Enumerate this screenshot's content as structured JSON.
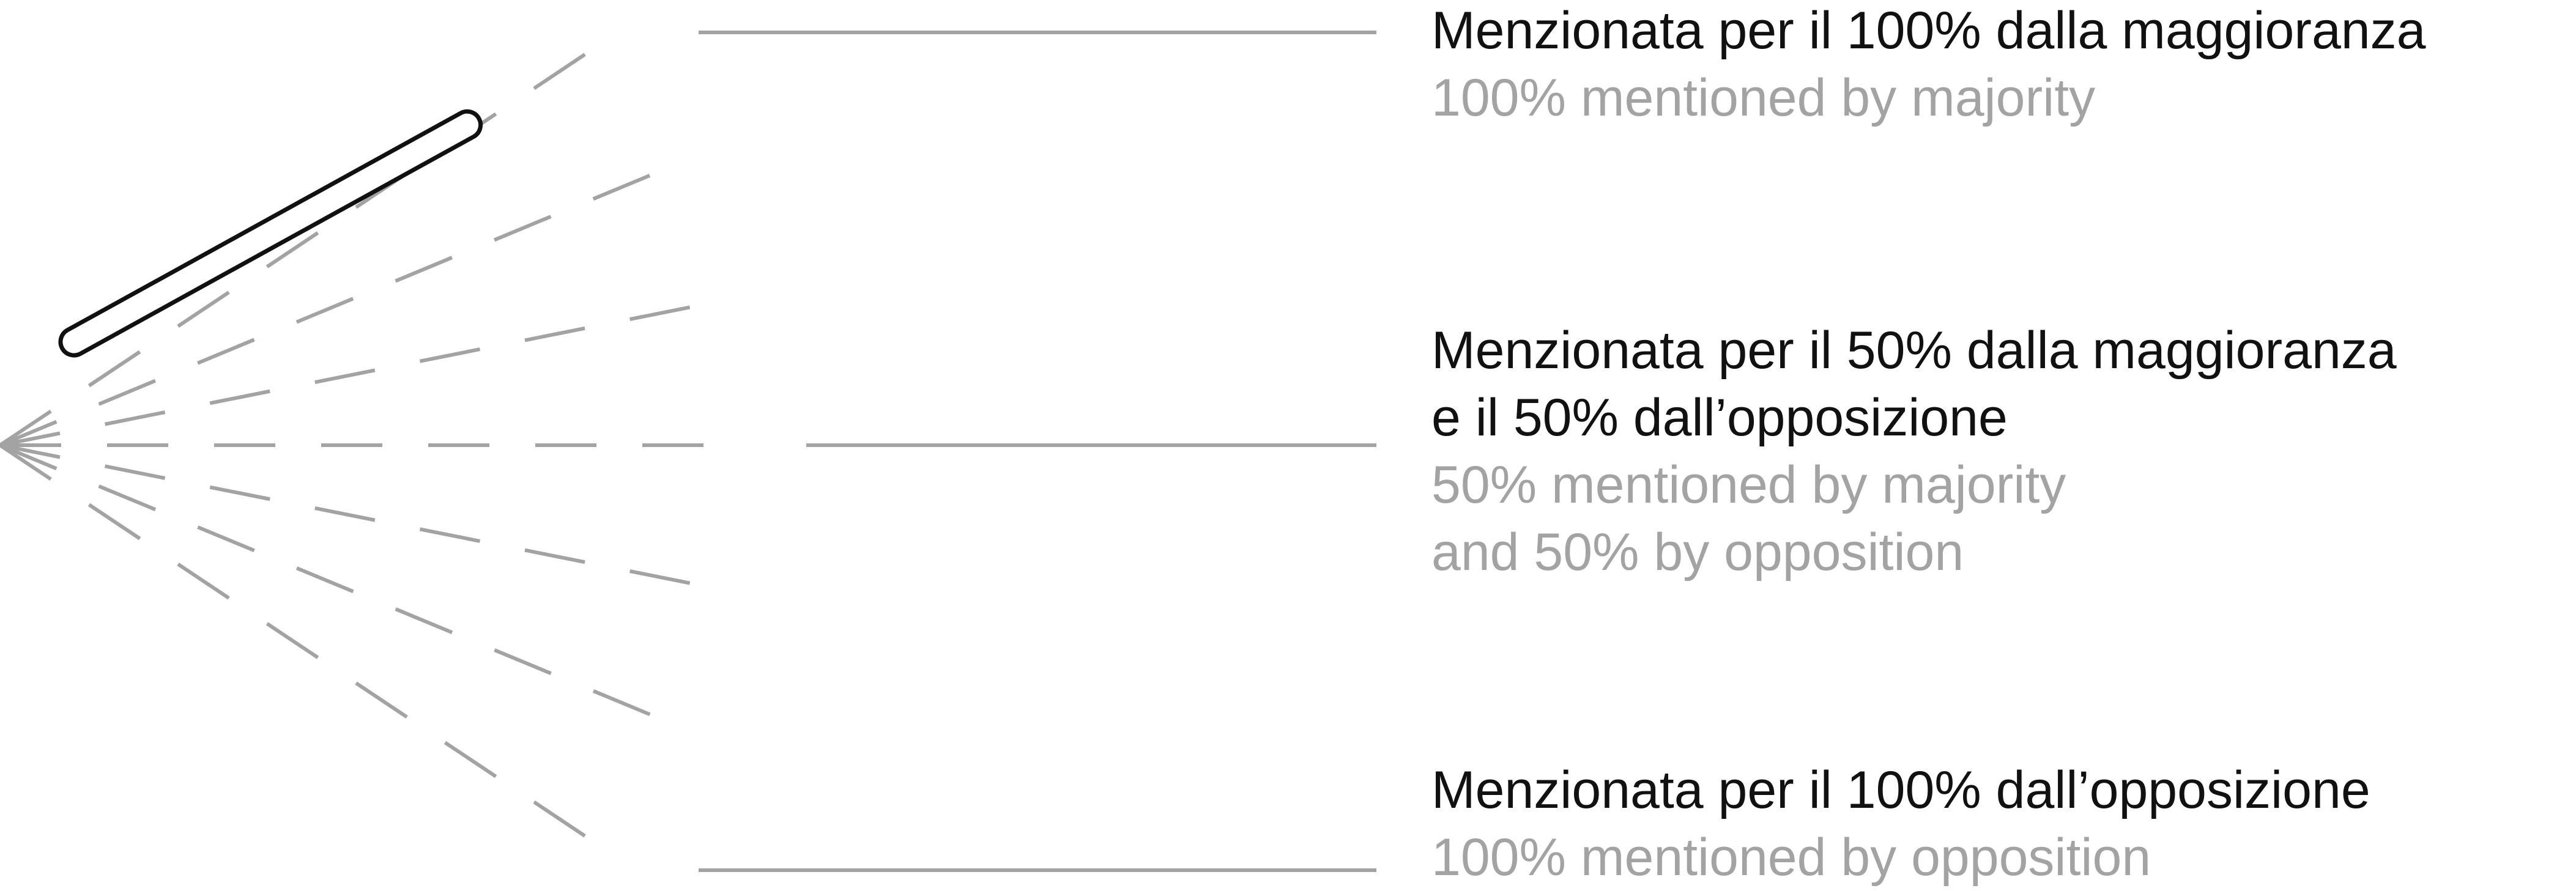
{
  "labels": {
    "top": {
      "italian": "Menzionata per il 100% dalla maggioranza",
      "english": "100% mentioned by majority"
    },
    "middle": {
      "italian_line1": "Menzionata per il 50% dalla maggioranza",
      "italian_line2": "e il 50% dall’opposizione",
      "english_line1": "50% mentioned by majority",
      "english_line2": "and 50% by opposition"
    },
    "bottom": {
      "italian": "Menzionata per il 100% dall’opposizione",
      "english": "100% mentioned by opposition"
    }
  },
  "colors": {
    "guide_line": "#a3a3a3",
    "indicator_outline": "#111111",
    "primary_text": "#111111",
    "secondary_text": "#a3a3a3"
  },
  "indicator": {
    "share_majority_percent": 100,
    "share_opposition_percent": 0
  }
}
